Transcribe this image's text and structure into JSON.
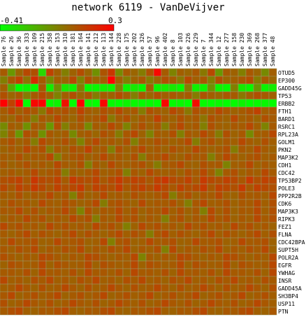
{
  "chart_data": {
    "type": "heatmap",
    "title": "network 6119 - VanDeVijver",
    "color_scale": {
      "min_label": "-0.41",
      "max_label": "0.3",
      "min": -0.41,
      "max": 0.3,
      "low_color": "#00ff00",
      "mid_color": "#808000",
      "high_color": "#ff0000"
    },
    "columns": [
      "Sample 76",
      "Sample 26",
      "Sample 36",
      "Sample 333",
      "Sample 109",
      "Sample 215",
      "Sample 358",
      "Sample 153",
      "Sample 310",
      "Sample 181",
      "Sample 164",
      "Sample 141",
      "Sample 212",
      "Sample 113",
      "Sample 144",
      "Sample 228",
      "Sample 175",
      "Sample 202",
      "Sample 326",
      "Sample 57",
      "Sample 96",
      "Sample 402",
      "Sample 8",
      "Sample 103",
      "Sample 226",
      "Sample 229",
      "Sample 7",
      "Sample 344",
      "Sample 12",
      "Sample 277",
      "Sample 158",
      "Sample 230",
      "Sample 369",
      "Sample 268",
      "Sample 377",
      "Sample 48"
    ],
    "rows": [
      "OTUD5",
      "EP300",
      "GADD45G",
      "TP53",
      "ERBB2",
      "FTH1",
      "BARD1",
      "RSRC1",
      "RPL23A",
      "GOLM1",
      "PKN2",
      "MAP3K2",
      "CDH1",
      "CDC42",
      "TP53BP2",
      "POLE3",
      "PPP2R2B",
      "CDK6",
      "MAP3K3",
      "RIPK3",
      "FEZ1",
      "FLNA",
      "CDC42BPA",
      "SUPT5H",
      "POLR2A",
      "EGFR",
      "YWHAG",
      "INSR",
      "GADD45A",
      "SH3BP4",
      "USP11",
      "PTN"
    ],
    "values": [
      [
        0.05,
        -0.12,
        0.02,
        0.1,
        0.08,
        -0.3,
        0.12,
        0.04,
        -0.05,
        0.03,
        0.09,
        0.02,
        -0.1,
        0.07,
        0.15,
        -0.08,
        0.05,
        0.02,
        -0.04,
        0.08,
        0.28,
        0.05,
        -0.06,
        0.04,
        0.02,
        0.06,
        -0.03,
        0.1,
        -0.12,
        0.05,
        0.03,
        -0.05,
        0.06,
        0.02,
        -0.08,
        0.04
      ],
      [
        -0.05,
        0.06,
        0.12,
        -0.02,
        0.18,
        0.05,
        -0.08,
        0.04,
        0.02,
        0.1,
        -0.06,
        0.08,
        0.02,
        0.05,
        0.3,
        0.04,
        -0.05,
        0.03,
        0.06,
        -0.04,
        0.02,
        0.08,
        0.05,
        -0.03,
        0.1,
        0.04,
        0.06,
        -0.05,
        0.08,
        0.02,
        0.04,
        0.06,
        0.09,
        -0.04,
        0.05,
        0.02
      ],
      [
        0.04,
        -0.18,
        -0.41,
        -0.38,
        -0.4,
        0.06,
        -0.36,
        -0.1,
        -0.35,
        -0.38,
        -0.04,
        -0.4,
        -0.39,
        -0.37,
        -0.38,
        -0.06,
        -0.38,
        -0.35,
        -0.4,
        0.04,
        -0.38,
        -0.36,
        -0.35,
        -0.39,
        -0.05,
        -0.37,
        -0.38,
        -0.1,
        -0.38,
        -0.4,
        -0.05,
        -0.35,
        -0.39,
        -0.12,
        -0.38,
        -0.36
      ],
      [
        0.08,
        0.02,
        0.06,
        -0.04,
        0.05,
        0.1,
        0.03,
        -0.06,
        0.04,
        0.08,
        0.02,
        0.06,
        -0.04,
        0.05,
        0.03,
        0.09,
        0.04,
        -0.05,
        0.06,
        0.02,
        0.08,
        0.04,
        0.06,
        0.03,
        0.05,
        -0.04,
        0.07,
        0.04,
        0.02,
        0.06,
        0.05,
        -0.03,
        0.04,
        0.08,
        0.05,
        0.04
      ],
      [
        0.3,
        0.12,
        0.29,
        -0.41,
        0.28,
        0.3,
        -0.4,
        -0.38,
        0.25,
        -0.41,
        0.3,
        -0.39,
        -0.41,
        0.28,
        -0.4,
        -0.41,
        -0.38,
        -0.39,
        -0.41,
        -0.4,
        -0.41,
        0.28,
        -0.4,
        -0.39,
        -0.41,
        0.27,
        -0.4,
        -0.41,
        -0.39,
        -0.41,
        -0.4,
        -0.38,
        -0.41,
        -0.4,
        -0.39,
        -0.41
      ],
      [
        0.05,
        0.1,
        0.04,
        0.08,
        0.06,
        -0.03,
        0.1,
        0.05,
        0.08,
        0.04,
        0.12,
        0.05,
        0.03,
        0.08,
        0.05,
        0.1,
        0.04,
        0.06,
        -0.04,
        0.08,
        0.05,
        0.03,
        0.1,
        0.06,
        -0.03,
        0.08,
        0.05,
        0.04,
        0.1,
        0.06,
        0.03,
        0.05,
        0.08,
        0.12,
        0.04,
        0.06
      ],
      [
        0.04,
        0.02,
        0.08,
        0.05,
        -0.04,
        0.06,
        0.03,
        0.1,
        0.05,
        0.02,
        0.08,
        0.04,
        0.06,
        0.1,
        -0.03,
        0.05,
        0.08,
        0.02,
        0.06,
        0.04,
        0.12,
        0.05,
        0.03,
        0.08,
        0.04,
        0.06,
        -0.02,
        0.08,
        0.05,
        0.03,
        0.1,
        0.04,
        0.06,
        0.02,
        0.08,
        0.05
      ],
      [
        -0.08,
        0.05,
        0.03,
        -0.1,
        0.06,
        0.04,
        -0.12,
        0.08,
        -0.05,
        0.04,
        0.06,
        -0.08,
        0.05,
        0.03,
        0.1,
        0.05,
        -0.06,
        0.04,
        0.08,
        0.03,
        0.06,
        -0.04,
        0.05,
        0.1,
        0.04,
        0.06,
        -0.05,
        0.08,
        0.04,
        0.03,
        0.06,
        0.05,
        0.1,
        0.04,
        -0.06,
        0.05
      ],
      [
        -0.06,
        0.04,
        -0.12,
        0.08,
        0.05,
        -0.1,
        0.06,
        0.03,
        0.05,
        -0.08,
        0.04,
        0.06,
        0.02,
        0.08,
        0.05,
        -0.04,
        0.06,
        0.1,
        0.03,
        -0.06,
        0.05,
        0.04,
        0.08,
        -0.05,
        0.06,
        0.04,
        0.1,
        0.05,
        -0.04,
        0.08,
        0.03,
        0.06,
        -0.08,
        0.04,
        0.05,
        0.1
      ],
      [
        0.05,
        0.08,
        0.03,
        0.06,
        -0.04,
        0.1,
        0.05,
        0.04,
        0.08,
        0.03,
        -0.06,
        0.05,
        0.1,
        0.04,
        0.06,
        0.03,
        0.08,
        -0.05,
        0.05,
        0.04,
        0.08,
        0.06,
        0.03,
        0.05,
        0.1,
        -0.04,
        0.05,
        0.08,
        0.03,
        0.06,
        0.04,
        0.1,
        0.05,
        0.03,
        0.08,
        0.04
      ],
      [
        0.03,
        0.06,
        0.04,
        0.1,
        0.05,
        0.08,
        -0.04,
        0.06,
        0.03,
        0.08,
        0.05,
        0.12,
        0.04,
        0.06,
        -0.05,
        0.08,
        0.03,
        0.05,
        0.1,
        0.04,
        0.06,
        0.03,
        0.08,
        0.05,
        0.04,
        0.1,
        0.06,
        0.03,
        0.05,
        0.08,
        -0.04,
        0.06,
        0.04,
        0.1,
        0.05,
        0.03
      ],
      [
        0.05,
        0.04,
        0.08,
        0.03,
        0.06,
        0.05,
        0.1,
        -0.05,
        0.04,
        0.06,
        0.08,
        0.03,
        0.05,
        0.1,
        0.04,
        0.06,
        0.03,
        0.08,
        -0.04,
        0.05,
        0.06,
        0.1,
        0.04,
        0.03,
        0.08,
        0.05,
        0.06,
        -0.05,
        0.04,
        0.1,
        0.05,
        0.03,
        0.06,
        0.08,
        0.04,
        0.05
      ],
      [
        0.06,
        0.03,
        0.05,
        0.08,
        0.04,
        0.06,
        0.03,
        0.1,
        0.05,
        0.04,
        0.08,
        -0.05,
        0.06,
        0.03,
        0.1,
        0.05,
        0.04,
        0.06,
        0.08,
        0.03,
        -0.04,
        0.05,
        0.06,
        0.1,
        0.04,
        0.03,
        0.08,
        0.05,
        0.06,
        -0.06,
        0.04,
        0.05,
        0.1,
        0.03,
        0.06,
        0.04
      ],
      [
        0.04,
        0.06,
        0.03,
        0.05,
        0.1,
        0.04,
        0.06,
        0.08,
        -0.04,
        0.05,
        0.03,
        0.06,
        0.1,
        0.04,
        0.05,
        0.08,
        -0.05,
        0.06,
        0.03,
        0.1,
        0.05,
        0.04,
        0.06,
        0.03,
        0.08,
        0.05,
        0.1,
        0.04,
        -0.06,
        0.05,
        0.08,
        0.03,
        0.06,
        0.04,
        0.1,
        0.05
      ],
      [
        0.08,
        0.1,
        0.12,
        0.06,
        0.15,
        0.1,
        0.08,
        0.12,
        0.05,
        0.14,
        0.1,
        0.08,
        0.12,
        0.06,
        0.1,
        0.14,
        0.08,
        0.12,
        0.1,
        0.06,
        0.12,
        0.15,
        0.1,
        0.08,
        0.12,
        0.06,
        0.14,
        0.1,
        0.08,
        0.12,
        0.1,
        0.06,
        0.14,
        0.08,
        0.12,
        0.1
      ],
      [
        0.1,
        0.06,
        0.12,
        0.08,
        0.14,
        0.1,
        0.06,
        0.12,
        0.08,
        0.1,
        0.14,
        0.06,
        0.12,
        0.1,
        0.08,
        0.14,
        0.06,
        0.1,
        0.12,
        0.08,
        0.14,
        0.1,
        0.06,
        0.12,
        0.08,
        0.1,
        0.14,
        0.06,
        0.12,
        0.1,
        0.08,
        0.14,
        0.06,
        0.12,
        0.1,
        0.08
      ],
      [
        0.05,
        0.04,
        0.08,
        0.03,
        0.06,
        0.05,
        0.1,
        0.04,
        0.06,
        -0.05,
        0.08,
        0.03,
        0.05,
        0.1,
        0.04,
        0.06,
        0.03,
        0.08,
        0.05,
        0.04,
        0.06,
        0.1,
        -0.04,
        0.05,
        0.08,
        0.03,
        0.06,
        0.05,
        0.1,
        0.04,
        0.03,
        0.08,
        0.05,
        0.06,
        0.04,
        0.1
      ],
      [
        0.04,
        0.08,
        0.05,
        0.06,
        0.03,
        0.1,
        0.05,
        0.04,
        0.08,
        0.06,
        0.03,
        0.05,
        0.1,
        -0.04,
        0.06,
        0.08,
        0.05,
        0.03,
        0.1,
        0.04,
        0.06,
        0.05,
        0.08,
        0.03,
        -0.05,
        0.06,
        0.1,
        0.04,
        0.05,
        0.08,
        0.03,
        0.06,
        0.05,
        0.1,
        0.04,
        0.08
      ],
      [
        0.06,
        0.05,
        0.1,
        0.04,
        0.08,
        0.03,
        0.06,
        0.05,
        0.1,
        0.04,
        -0.06,
        0.08,
        0.03,
        0.06,
        0.05,
        0.1,
        0.04,
        0.08,
        0.03,
        0.06,
        0.05,
        0.1,
        0.04,
        0.08,
        0.03,
        0.06,
        -0.05,
        0.1,
        0.04,
        0.08,
        0.03,
        0.06,
        0.05,
        0.1,
        0.04,
        0.08
      ],
      [
        0.03,
        0.06,
        0.04,
        0.1,
        0.05,
        0.08,
        0.03,
        0.06,
        0.04,
        0.1,
        0.05,
        0.08,
        -0.04,
        0.06,
        0.04,
        0.1,
        0.05,
        0.08,
        0.03,
        0.06,
        0.04,
        -0.05,
        0.05,
        0.08,
        0.03,
        0.06,
        0.04,
        0.1,
        0.05,
        0.08,
        0.03,
        0.06,
        0.04,
        0.1,
        0.05,
        0.08
      ],
      [
        0.1,
        0.05,
        0.08,
        0.04,
        0.06,
        0.03,
        0.1,
        0.05,
        0.08,
        0.04,
        0.06,
        0.03,
        0.1,
        0.05,
        0.08,
        0.04,
        -0.05,
        0.03,
        0.1,
        0.05,
        0.08,
        0.04,
        0.06,
        0.03,
        0.1,
        0.05,
        0.08,
        0.04,
        0.06,
        0.03,
        0.1,
        0.05,
        0.08,
        0.04,
        0.06,
        0.03
      ],
      [
        0.05,
        0.03,
        0.06,
        0.1,
        0.04,
        0.08,
        0.05,
        0.03,
        0.06,
        0.1,
        0.04,
        0.08,
        0.05,
        0.03,
        0.06,
        0.1,
        0.04,
        0.08,
        0.05,
        -0.04,
        0.06,
        0.1,
        0.04,
        0.08,
        0.05,
        0.03,
        0.06,
        0.1,
        0.04,
        0.08,
        0.05,
        0.03,
        0.06,
        0.1,
        0.04,
        0.08
      ],
      [
        0.04,
        0.1,
        0.05,
        0.06,
        0.08,
        0.03,
        0.04,
        0.1,
        0.05,
        0.06,
        0.08,
        0.03,
        0.04,
        0.1,
        -0.05,
        0.06,
        0.08,
        0.03,
        0.04,
        0.1,
        0.05,
        0.06,
        0.08,
        0.03,
        0.04,
        0.1,
        0.05,
        0.06,
        0.08,
        0.03,
        0.04,
        0.1,
        0.05,
        0.06,
        0.08,
        0.03
      ],
      [
        0.06,
        0.04,
        0.08,
        0.05,
        0.1,
        0.03,
        0.06,
        0.04,
        0.08,
        0.05,
        0.1,
        0.03,
        0.06,
        0.04,
        0.08,
        0.05,
        0.1,
        0.03,
        0.06,
        0.04,
        0.08,
        -0.05,
        0.1,
        0.03,
        0.06,
        0.04,
        0.08,
        0.05,
        0.1,
        0.03,
        0.06,
        0.04,
        0.08,
        0.05,
        0.1,
        0.03
      ],
      [
        0.08,
        0.05,
        0.03,
        0.06,
        0.04,
        0.1,
        0.08,
        0.05,
        0.03,
        0.06,
        0.04,
        0.1,
        0.08,
        0.05,
        0.03,
        0.06,
        0.04,
        0.1,
        -0.06,
        0.05,
        0.03,
        0.06,
        0.04,
        0.1,
        0.08,
        0.05,
        0.03,
        0.06,
        0.04,
        0.1,
        0.08,
        0.05,
        0.03,
        0.06,
        0.04,
        0.1
      ],
      [
        0.03,
        0.08,
        0.06,
        0.04,
        0.05,
        0.1,
        0.03,
        0.08,
        0.06,
        0.04,
        0.05,
        0.1,
        0.03,
        0.08,
        0.06,
        0.04,
        0.05,
        0.1,
        0.03,
        0.08,
        0.06,
        0.04,
        0.05,
        0.1,
        0.03,
        0.08,
        0.06,
        0.04,
        0.05,
        0.1,
        0.03,
        0.08,
        0.06,
        0.04,
        0.05,
        0.1
      ],
      [
        0.05,
        0.06,
        0.04,
        0.08,
        0.03,
        0.1,
        0.05,
        0.06,
        0.04,
        0.08,
        0.03,
        0.1,
        0.05,
        0.06,
        0.04,
        0.08,
        0.03,
        0.1,
        0.05,
        0.06,
        0.04,
        0.08,
        0.03,
        0.1,
        0.05,
        0.06,
        0.04,
        0.08,
        0.03,
        0.1,
        0.05,
        0.06,
        0.04,
        0.08,
        0.03,
        0.1
      ],
      [
        0.1,
        0.04,
        0.06,
        0.03,
        0.08,
        0.05,
        0.1,
        0.04,
        0.06,
        0.03,
        0.08,
        0.05,
        0.1,
        0.04,
        0.06,
        0.03,
        0.08,
        0.05,
        0.1,
        0.04,
        0.06,
        0.03,
        0.08,
        0.05,
        0.1,
        0.04,
        0.06,
        0.03,
        0.08,
        0.05,
        0.1,
        0.04,
        0.06,
        0.03,
        0.08,
        0.05
      ],
      [
        0.04,
        0.05,
        0.1,
        0.06,
        0.03,
        0.08,
        0.04,
        0.05,
        0.1,
        0.06,
        0.03,
        0.08,
        0.04,
        0.05,
        0.1,
        0.06,
        0.03,
        0.08,
        0.04,
        0.05,
        0.1,
        0.06,
        0.03,
        0.08,
        0.04,
        0.05,
        0.1,
        0.06,
        0.03,
        0.08,
        0.04,
        0.05,
        0.1,
        0.06,
        0.03,
        0.08
      ],
      [
        0.06,
        0.1,
        0.03,
        0.05,
        0.08,
        0.04,
        0.06,
        0.1,
        0.03,
        0.05,
        0.08,
        0.04,
        0.06,
        0.1,
        0.03,
        0.05,
        0.08,
        0.04,
        0.06,
        0.1,
        0.03,
        0.05,
        0.08,
        0.04,
        0.06,
        0.1,
        0.03,
        0.05,
        0.08,
        0.04,
        0.06,
        0.1,
        0.03,
        0.05,
        0.08,
        0.04
      ],
      [
        0.08,
        0.03,
        0.05,
        0.1,
        0.06,
        0.04,
        0.08,
        0.03,
        0.05,
        0.1,
        0.06,
        0.04,
        0.08,
        0.03,
        0.05,
        0.1,
        0.06,
        0.04,
        0.08,
        0.03,
        0.05,
        0.1,
        0.06,
        0.04,
        0.08,
        0.03,
        0.05,
        0.1,
        0.06,
        0.04,
        0.08,
        0.03,
        0.05,
        0.1,
        0.06,
        0.04
      ],
      [
        0.05,
        0.08,
        0.1,
        0.04,
        0.03,
        0.06,
        0.05,
        0.08,
        0.1,
        0.04,
        0.03,
        0.06,
        0.05,
        0.08,
        0.1,
        0.04,
        0.03,
        0.06,
        0.05,
        0.08,
        0.1,
        0.04,
        0.03,
        0.06,
        0.05,
        0.08,
        0.1,
        0.04,
        0.03,
        0.06,
        0.05,
        0.08,
        0.1,
        0.04,
        0.03,
        0.06
      ]
    ]
  }
}
